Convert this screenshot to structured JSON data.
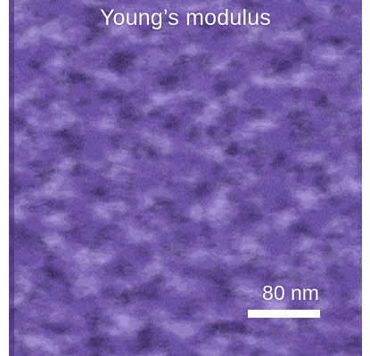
{
  "image": {
    "title": "Young’s modulus",
    "scale_bar_label": "80 nm",
    "colors": {
      "base": "#5a3f96",
      "dark": "#2e1f5e",
      "light": "#b49ee0",
      "text": "#ffffff"
    }
  }
}
